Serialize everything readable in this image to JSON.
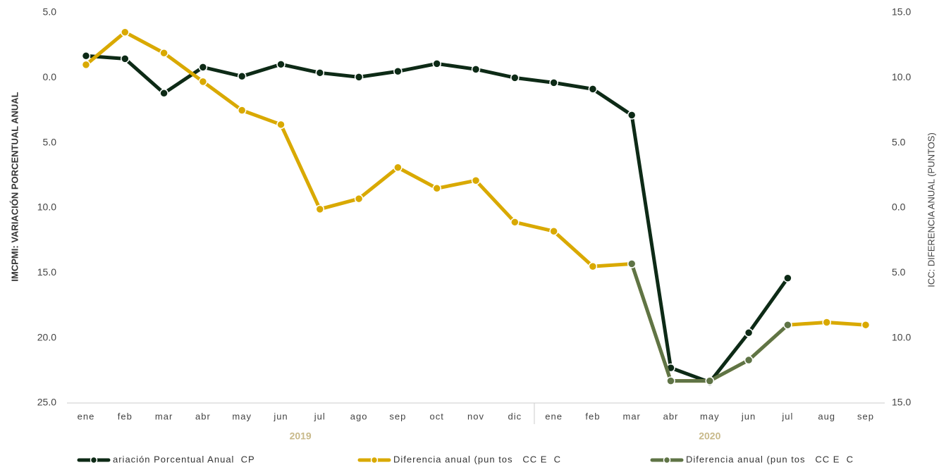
{
  "chart_data": {
    "type": "line",
    "y_label": "IMCPMI: VARIACIÓN PORCENTUAL ANUAL",
    "y2_label": "ICC: DIFERENCIA ANUAL (PUNTOS)",
    "categories": [
      "ene",
      "feb",
      "mar",
      "abr",
      "may",
      "jun",
      "jul",
      "ago",
      "sep",
      "oct",
      "nov",
      "dic",
      "ene",
      "feb",
      "mar",
      "abr",
      "may",
      "jun",
      "jul",
      "aug",
      "sep"
    ],
    "year_labels": [
      "2019",
      "2020"
    ],
    "ylim": [
      -25,
      5
    ],
    "yticks": [
      {
        "value": 5,
        "label": "5.0"
      },
      {
        "value": 0,
        "label": "0.0"
      },
      {
        "value": -5,
        "label": "5.0"
      },
      {
        "value": -10,
        "label": "10.0"
      },
      {
        "value": -15,
        "label": "15.0"
      },
      {
        "value": -20,
        "label": "20.0"
      },
      {
        "value": -25,
        "label": "25.0"
      }
    ],
    "y2lim": [
      -15,
      15
    ],
    "y2ticks": [
      {
        "value": 15,
        "label": "15.0"
      },
      {
        "value": 10,
        "label": "10.0"
      },
      {
        "value": 5,
        "label": "5.0"
      },
      {
        "value": 0,
        "label": "0.0"
      },
      {
        "value": -5,
        "label": "5.0"
      },
      {
        "value": -10,
        "label": "10.0"
      },
      {
        "value": -15,
        "label": "15.0"
      }
    ],
    "grid": false,
    "series": [
      {
        "name": "ariación Porcentual Anual  CP",
        "color": "#0d2a16",
        "axis": "y",
        "values": [
          1.68,
          1.46,
          -1.19,
          0.81,
          0.11,
          1.03,
          0.38,
          0.05,
          0.49,
          1.08,
          0.65,
          0.0,
          -0.38,
          -0.87,
          -2.87,
          -22.3,
          -23.4,
          -19.6,
          -15.4,
          null,
          null
        ]
      },
      {
        "name": "Diferencia anual (pun tos   CC E  C",
        "color": "#d9a900",
        "axis": "y2",
        "values": [
          11.0,
          13.5,
          11.9,
          9.7,
          7.5,
          6.4,
          -0.1,
          0.7,
          3.1,
          1.5,
          2.1,
          -1.1,
          -1.8,
          -4.5,
          -4.3,
          -13.3,
          -13.3,
          -11.7,
          -9.0,
          -8.8,
          -9.0
        ]
      },
      {
        "name": "Diferencia anual (pun tos   CC E  C",
        "color": "#5f7446",
        "axis": "y2",
        "values": [
          null,
          null,
          null,
          null,
          null,
          null,
          null,
          null,
          null,
          null,
          null,
          null,
          null,
          null,
          -4.3,
          -13.3,
          -13.3,
          -11.7,
          -9.0,
          null,
          null
        ]
      }
    ]
  }
}
